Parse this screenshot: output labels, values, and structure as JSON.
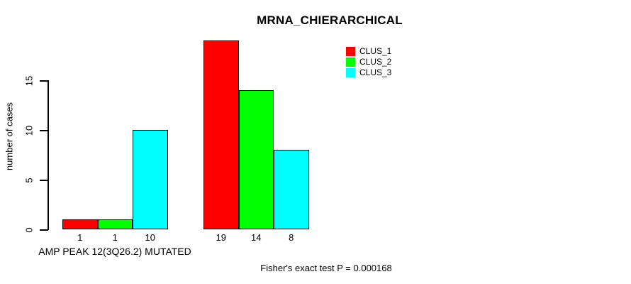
{
  "chart_data": {
    "type": "bar",
    "title": "MRNA_CHIERARCHICAL",
    "xlabel": "AMP PEAK 12(3Q26.2) MUTATED",
    "ylabel": "number of cases",
    "ylim": [
      0,
      19
    ],
    "yticks": [
      0,
      5,
      10,
      15
    ],
    "grid": false,
    "bar_orientation": "vertical",
    "n_groups": 2,
    "group_labels": [
      "AMP PEAK 12(3Q26.2) MUTATED",
      ""
    ],
    "series": [
      {
        "name": "CLUS_1",
        "color": "#ff0000",
        "values": [
          1,
          19
        ]
      },
      {
        "name": "CLUS_2",
        "color": "#00ff00",
        "values": [
          1,
          14
        ]
      },
      {
        "name": "CLUS_3",
        "color": "#00ffff",
        "values": [
          10,
          8
        ]
      }
    ],
    "bar_value_labels": [
      [
        "1",
        "19"
      ],
      [
        "1",
        "14"
      ],
      [
        "10",
        "8"
      ]
    ],
    "legend": {
      "position": "top-right",
      "entries": [
        "CLUS_1",
        "CLUS_2",
        "CLUS_3"
      ]
    },
    "annotation": "Fisher's exact test P = 0.000168"
  },
  "colors": {
    "background": "#ffffff",
    "axis": "#000000",
    "bar_border": "#000000",
    "text": "#000000"
  }
}
